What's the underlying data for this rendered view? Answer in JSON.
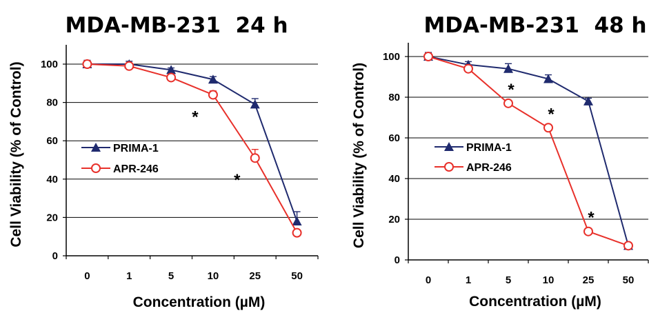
{
  "colors": {
    "prima": "#1f2a6e",
    "apr": "#e8302a"
  },
  "chart_data": [
    {
      "type": "line",
      "title": "MDA-MB-231  24 h",
      "xlabel": "Concentration (µM)",
      "ylabel": "Cell Viability (% of Control)",
      "categories": [
        "0",
        "1",
        "5",
        "10",
        "25",
        "50"
      ],
      "ylim": [
        0,
        110
      ],
      "yticks": [
        "0",
        "20",
        "40",
        "60",
        "80",
        "100"
      ],
      "grid": true,
      "legend_position": "left-middle",
      "series": [
        {
          "name": "PRIMA-1",
          "marker": "filled-triangle",
          "values": [
            100,
            100,
            97,
            92,
            79,
            18
          ],
          "errors": [
            2,
            1.5,
            1,
            1.5,
            3,
            5
          ]
        },
        {
          "name": "APR-246",
          "marker": "open-circle",
          "values": [
            100,
            99,
            93,
            84,
            51,
            12
          ],
          "errors": [
            1.5,
            1,
            1,
            2,
            4.5,
            1
          ]
        }
      ],
      "annotations": [
        {
          "text": "*",
          "category": "10"
        },
        {
          "text": "*",
          "category": "25"
        }
      ]
    },
    {
      "type": "line",
      "title": "MDA-MB-231  48 h",
      "xlabel": "Concentration (µM)",
      "ylabel": "Cell Viability (% of Control)",
      "categories": [
        "0",
        "1",
        "5",
        "10",
        "25",
        "50"
      ],
      "ylim": [
        0,
        110
      ],
      "yticks": [
        "0",
        "20",
        "40",
        "60",
        "80",
        "100"
      ],
      "grid": true,
      "legend_position": "left-middle",
      "series": [
        {
          "name": "PRIMA-1",
          "marker": "filled-triangle",
          "values": [
            100,
            96,
            94,
            89,
            78,
            7
          ],
          "errors": [
            2,
            1.5,
            2.5,
            2,
            1.5,
            1
          ]
        },
        {
          "name": "APR-246",
          "marker": "open-circle",
          "values": [
            100,
            94,
            77,
            65,
            14,
            7
          ],
          "errors": [
            1.5,
            1,
            1,
            1,
            1,
            1
          ]
        }
      ],
      "annotations": [
        {
          "text": "*",
          "category": "5"
        },
        {
          "text": "*",
          "category": "10"
        },
        {
          "text": "*",
          "category": "25"
        }
      ]
    }
  ]
}
